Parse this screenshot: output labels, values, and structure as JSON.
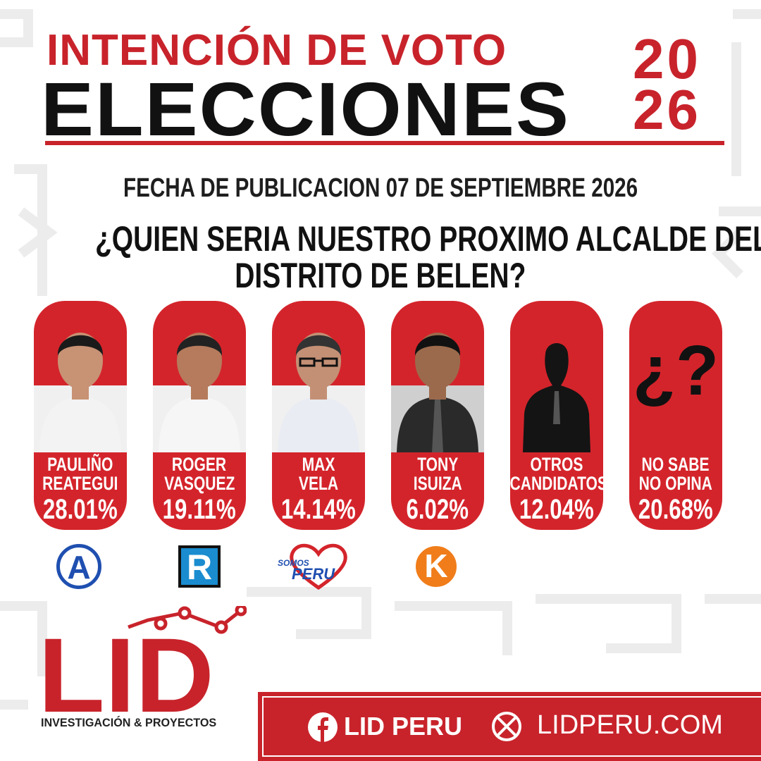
{
  "header": {
    "title_line1": "INTENCIÓN DE VOTO",
    "title_line2": "ELECCIONES",
    "year_top": "20",
    "year_bottom": "26"
  },
  "date": "FECHA DE PUBLICACION 07 DE SEPTIEMBRE 2026",
  "question_lines": [
    "¿QUIEN SERIA NUESTRO PROXIMO ALCALDE DEL",
    "DISTRITO DE BELEN?"
  ],
  "candidates": [
    {
      "name_lines": [
        "PAULIÑO",
        "REATEGUI"
      ],
      "value": "28.01%",
      "party": "A"
    },
    {
      "name_lines": [
        "ROGER",
        "VASQUEZ"
      ],
      "value": "19.11%",
      "party": "R"
    },
    {
      "name_lines": [
        "MAX",
        "VELA"
      ],
      "value": "14.14%",
      "party_lines": [
        "SOMOS",
        "PERU"
      ]
    },
    {
      "name_lines": [
        "TONY",
        "ISUIZA"
      ],
      "value": "6.02%",
      "party": "K"
    },
    {
      "name_lines": [
        "OTROS",
        "CANDIDATOS"
      ],
      "value": "12.04%"
    },
    {
      "name_lines": [
        "NO SABE",
        "NO OPINA"
      ],
      "value": "20.68%",
      "placeholder": "¿?"
    }
  ],
  "footer": {
    "logo": "LID",
    "logo_subtitle": "INVESTIGACIÓN & PROYECTOS",
    "facebook": "LID PERU",
    "website": "LIDPERU.COM"
  }
}
